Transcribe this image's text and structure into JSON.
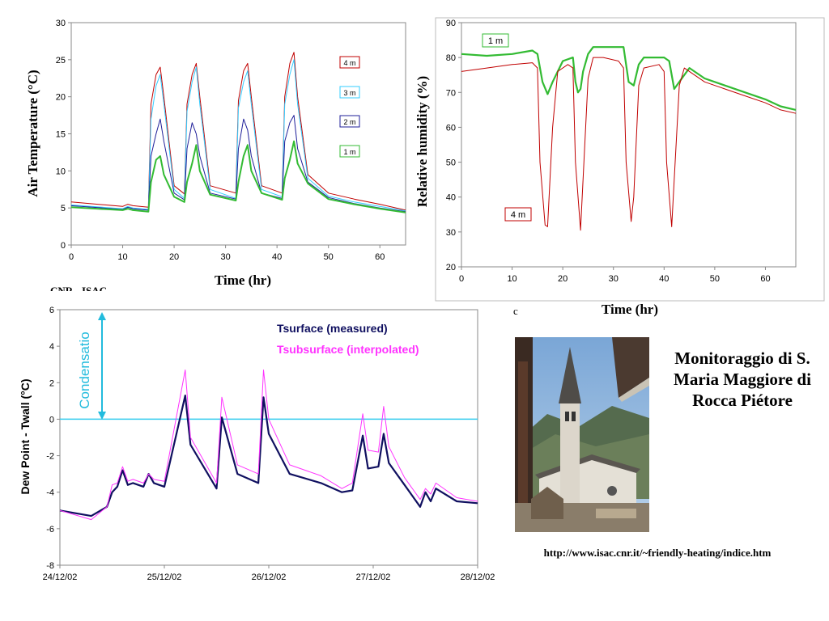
{
  "chart_data": [
    {
      "type": "line",
      "xlabel": "Time  (hr)",
      "ylabel": "Air Temperature  (°C)",
      "xlim": [
        0,
        65
      ],
      "ylim": [
        0,
        30
      ],
      "xticks": [
        0,
        10,
        20,
        30,
        40,
        50,
        60
      ],
      "yticks": [
        0,
        5,
        10,
        15,
        20,
        25,
        30
      ],
      "legend_position": "right",
      "series": [
        {
          "name": "4 m",
          "color": "#c00000",
          "x": [
            0,
            10,
            11,
            12,
            15,
            15.5,
            16.5,
            17.3,
            18,
            20,
            22,
            22.5,
            23.5,
            24.3,
            25,
            27,
            32,
            32.5,
            33.5,
            34.3,
            35,
            37,
            41,
            41.5,
            42.5,
            43.3,
            44,
            46,
            50,
            55,
            60,
            65
          ],
          "y": [
            5.8,
            5.2,
            5.5,
            5.3,
            5.1,
            19,
            23,
            24,
            20,
            8,
            6.9,
            19,
            23,
            24.5,
            20,
            8,
            7,
            19.5,
            23.5,
            24.5,
            20,
            8,
            7,
            20,
            24.5,
            26,
            20,
            9.5,
            7,
            6.2,
            5.5,
            4.7
          ]
        },
        {
          "name": "3 m",
          "color": "#33ccff",
          "x": [
            0,
            10,
            11,
            12,
            15,
            15.5,
            16.5,
            17.3,
            18,
            20,
            22,
            22.5,
            23.5,
            24.3,
            25,
            27,
            32,
            32.5,
            33.5,
            34.3,
            35,
            37,
            41,
            41.5,
            42.5,
            43.3,
            44,
            46,
            50,
            55,
            60,
            65
          ],
          "y": [
            5.4,
            4.9,
            5.2,
            5,
            4.8,
            17,
            21.5,
            23,
            19,
            7.5,
            6.3,
            18,
            22,
            24,
            19,
            7.5,
            6.3,
            18.5,
            22,
            23.5,
            19,
            7.5,
            6.5,
            19,
            23,
            25,
            19,
            9,
            6.6,
            5.8,
            5.2,
            4.6
          ]
        },
        {
          "name": "2 m",
          "color": "#1f1f99",
          "x": [
            0,
            10,
            11,
            12,
            15,
            15.5,
            16.5,
            17.3,
            18,
            20,
            22,
            22.5,
            23.5,
            24.3,
            25,
            27,
            32,
            32.5,
            33.5,
            34.3,
            35,
            37,
            41,
            41.5,
            42.5,
            43.3,
            44,
            46,
            50,
            55,
            60,
            65
          ],
          "y": [
            5.3,
            4.8,
            5.1,
            4.9,
            4.7,
            12,
            15,
            17,
            14,
            7,
            6.1,
            13,
            16.5,
            15,
            12,
            7,
            6.2,
            13,
            17,
            15.5,
            12,
            7,
            6.3,
            14,
            16.5,
            17.5,
            13,
            8.5,
            6.4,
            5.6,
            5,
            4.5
          ]
        },
        {
          "name": "1 m",
          "color": "#33bb33",
          "x": [
            0,
            10,
            11,
            12,
            15,
            15.5,
            16.5,
            17.3,
            18,
            20,
            22,
            22.5,
            23.5,
            24.3,
            25,
            27,
            32,
            32.5,
            33.5,
            34.3,
            35,
            37,
            41,
            41.5,
            42.5,
            43.3,
            44,
            46,
            50,
            55,
            60,
            65
          ],
          "y": [
            5.1,
            4.7,
            4.9,
            4.7,
            4.5,
            8.5,
            11.5,
            12,
            9.5,
            6.5,
            5.8,
            8.5,
            11,
            13.5,
            10,
            6.8,
            6,
            8.5,
            12,
            13.5,
            10,
            7,
            6.1,
            9,
            11.5,
            14,
            11,
            8.3,
            6.2,
            5.5,
            4.9,
            4.4
          ]
        }
      ]
    },
    {
      "type": "line",
      "xlabel": "Time  (hr)",
      "ylabel": "Relative humidity  (%)",
      "xlim": [
        0,
        66
      ],
      "ylim": [
        20,
        90
      ],
      "xticks": [
        0,
        10,
        20,
        30,
        40,
        50,
        60
      ],
      "yticks": [
        20,
        30,
        40,
        50,
        60,
        70,
        80,
        90
      ],
      "series": [
        {
          "name": "1 m",
          "color": "#33bb33",
          "x": [
            0,
            5,
            10,
            14,
            15,
            16,
            17,
            18,
            20,
            22,
            22.5,
            23,
            23.5,
            24,
            25,
            26,
            28,
            32,
            33,
            34,
            35,
            36,
            40,
            41,
            42,
            44,
            45,
            48,
            52,
            56,
            60,
            63,
            66
          ],
          "y": [
            81,
            80.5,
            81,
            82,
            81,
            73,
            69.5,
            73,
            79,
            80,
            73,
            70,
            71,
            76,
            81,
            83,
            83,
            83,
            73,
            72,
            78,
            80,
            80,
            79,
            71,
            75,
            77,
            74,
            72,
            70,
            68,
            66,
            65
          ]
        },
        {
          "name": "4 m",
          "color": "#c00000",
          "x": [
            0,
            5,
            10,
            14,
            15,
            15.5,
            16.5,
            17,
            18,
            19,
            21,
            22,
            22.5,
            23.5,
            24,
            25,
            26,
            28,
            31,
            32,
            32.5,
            33.5,
            34,
            35,
            36,
            39,
            40,
            40.5,
            41.5,
            42,
            43,
            44,
            45,
            48,
            52,
            56,
            60,
            63,
            66
          ],
          "y": [
            76,
            77,
            78,
            78.5,
            77,
            50,
            32,
            31.5,
            60,
            76,
            78,
            77,
            50,
            30.5,
            45,
            74,
            80,
            80,
            79,
            77,
            50,
            33,
            40,
            72,
            77,
            78,
            76,
            50,
            31.5,
            45,
            72,
            77,
            76,
            73,
            71,
            69,
            67,
            65,
            64
          ]
        }
      ]
    },
    {
      "type": "line",
      "xlabel": "",
      "ylabel": "Dew Point - Twall (°C)",
      "x_tick_labels": [
        "24/12/02",
        "25/12/02",
        "26/12/02",
        "27/12/02",
        "28/12/02"
      ],
      "xlim_days": [
        0,
        4
      ],
      "ylim": [
        -8,
        6
      ],
      "yticks": [
        -8,
        -6,
        -4,
        -2,
        0,
        2,
        4,
        6
      ],
      "annotation": "Condensatio",
      "series": [
        {
          "name": "Tsurface (measured)",
          "color": "#101060",
          "x": [
            0,
            0.3,
            0.45,
            0.5,
            0.55,
            0.6,
            0.65,
            0.7,
            0.8,
            0.85,
            0.9,
            1,
            1.2,
            1.25,
            1.5,
            1.55,
            1.7,
            1.9,
            1.95,
            2,
            2.2,
            2.5,
            2.7,
            2.8,
            2.9,
            2.95,
            3.05,
            3.1,
            3.15,
            3.3,
            3.45,
            3.5,
            3.55,
            3.6,
            3.8,
            4
          ],
          "y": [
            -5,
            -5.3,
            -4.8,
            -4,
            -3.7,
            -2.8,
            -3.6,
            -3.5,
            -3.7,
            -3,
            -3.5,
            -3.7,
            1.3,
            -1.4,
            -3.8,
            0.1,
            -3,
            -3.5,
            1.2,
            -0.8,
            -3,
            -3.5,
            -4,
            -3.9,
            -0.9,
            -2.7,
            -2.6,
            -0.8,
            -2.4,
            -3.6,
            -4.8,
            -4,
            -4.5,
            -3.8,
            -4.5,
            -4.6
          ]
        },
        {
          "name": "Tsubsurface (interpolated)",
          "color": "#ff33ff",
          "x": [
            0,
            0.3,
            0.45,
            0.5,
            0.55,
            0.6,
            0.65,
            0.7,
            0.8,
            0.85,
            0.9,
            1,
            1.2,
            1.25,
            1.5,
            1.55,
            1.7,
            1.9,
            1.95,
            2,
            2.2,
            2.5,
            2.7,
            2.8,
            2.9,
            2.95,
            3.05,
            3.1,
            3.15,
            3.3,
            3.45,
            3.5,
            3.55,
            3.6,
            3.8,
            4
          ],
          "y": [
            -5,
            -5.5,
            -4.8,
            -3.6,
            -3.5,
            -2.6,
            -3.4,
            -3.3,
            -3.5,
            -3,
            -3.3,
            -3.4,
            2.7,
            -1,
            -3.5,
            1.2,
            -2.5,
            -3,
            2.7,
            0,
            -2.5,
            -3.1,
            -3.8,
            -3.5,
            0.3,
            -1.7,
            -1.8,
            0.7,
            -1.5,
            -3.2,
            -4.4,
            -3.8,
            -4.1,
            -3.5,
            -4.3,
            -4.5
          ]
        }
      ]
    }
  ],
  "caption": "Monitoraggio di S. Maria Maggiore di Rocca Piétore",
  "url": "http://www.isac.cnr.it/~friendly-heating/indice.htm",
  "photo": {
    "icon": "church-photo"
  },
  "fragments": {
    "cnr_text": "CNR - ISAC",
    "stray_c": "c"
  }
}
